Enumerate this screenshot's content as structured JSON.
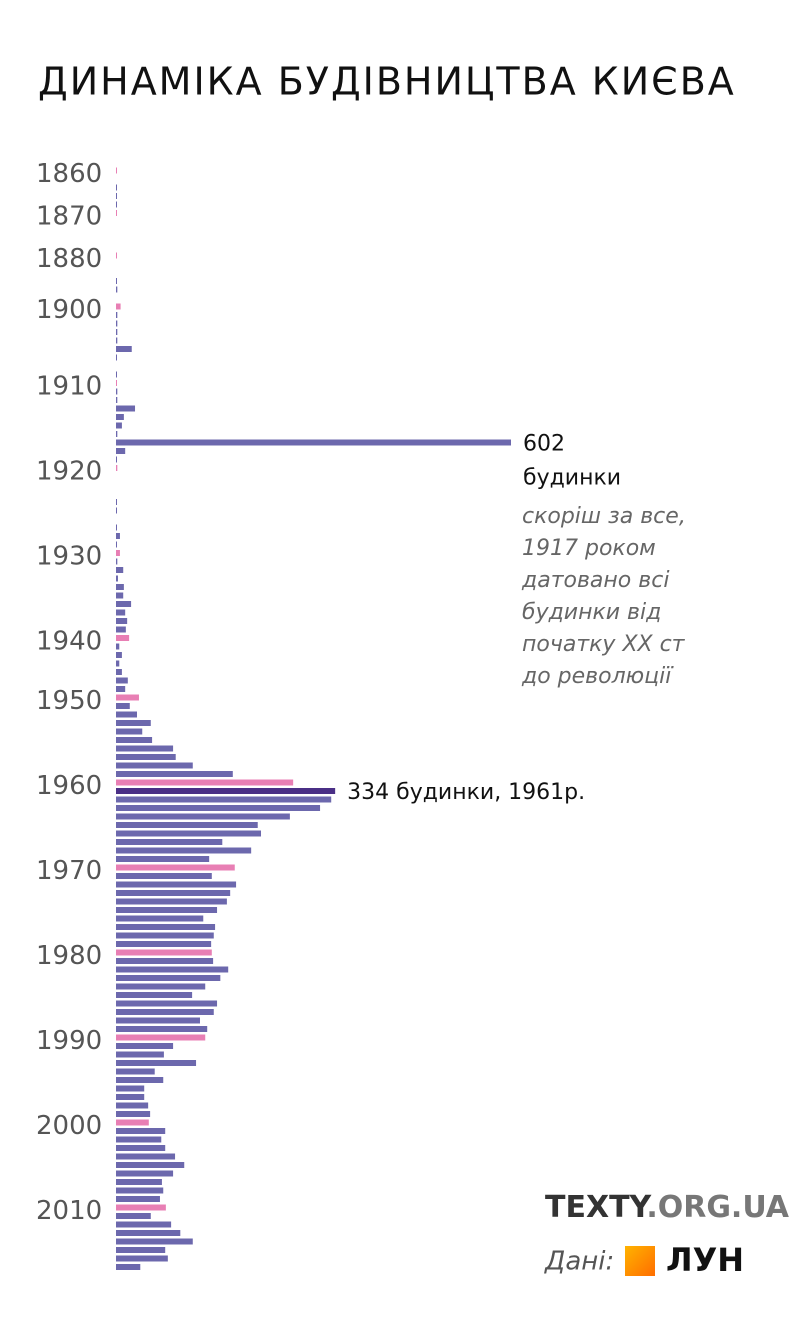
{
  "chart_data": {
    "type": "barh",
    "title": "ДИНАМІКА БУДІВНИЦТВА КИЄВА",
    "categories": [
      "1860",
      null,
      null,
      null,
      null,
      "1870",
      null,
      null,
      null,
      null,
      "1880",
      null,
      null,
      null,
      null,
      null,
      "1900",
      null,
      null,
      null,
      null,
      null,
      null,
      null,
      null,
      "1910",
      null,
      null,
      null,
      null,
      null,
      null,
      null,
      null,
      null,
      "1920",
      null,
      null,
      null,
      null,
      null,
      null,
      null,
      null,
      null,
      "1930",
      null,
      null,
      null,
      null,
      null,
      null,
      null,
      null,
      null,
      "1940",
      null,
      null,
      null,
      null,
      null,
      null,
      "1950",
      null,
      null,
      null,
      null,
      null,
      null,
      null,
      null,
      null,
      "1960",
      null,
      null,
      null,
      null,
      null,
      null,
      null,
      null,
      null,
      "1970",
      null,
      null,
      null,
      null,
      null,
      null,
      null,
      null,
      null,
      "1980",
      null,
      null,
      null,
      null,
      null,
      null,
      null,
      null,
      null,
      "1990",
      null,
      null,
      null,
      null,
      null,
      null,
      null,
      null,
      null,
      "2000",
      null,
      null,
      null,
      null,
      null,
      null,
      null,
      null,
      null,
      "2010",
      null,
      null,
      null,
      null,
      null,
      null,
      null
    ],
    "values": [
      1,
      null,
      1,
      1,
      1,
      1,
      null,
      null,
      null,
      null,
      1,
      null,
      null,
      1,
      2,
      null,
      7,
      2,
      2,
      2,
      2,
      24,
      1,
      null,
      1,
      1,
      2,
      2,
      29,
      12,
      9,
      2,
      602,
      14,
      1,
      2,
      null,
      null,
      null,
      1,
      1,
      null,
      1,
      6,
      1,
      6,
      2,
      11,
      3,
      12,
      11,
      23,
      14,
      17,
      15,
      20,
      5,
      9,
      5,
      9,
      18,
      14,
      35,
      21,
      32,
      53,
      40,
      55,
      87,
      91,
      117,
      178,
      270,
      334,
      328,
      311,
      265,
      216,
      221,
      162,
      206,
      142,
      181,
      146,
      183,
      174,
      169,
      154,
      133,
      151,
      149,
      145,
      146,
      148,
      171,
      159,
      136,
      116,
      154,
      149,
      128,
      139,
      136,
      87,
      73,
      122,
      59,
      72,
      43,
      43,
      49,
      52,
      50,
      75,
      69,
      75,
      90,
      104,
      87,
      70,
      72,
      67,
      76,
      53,
      84,
      98,
      117,
      75,
      79,
      37
    ],
    "value_labels": {
      "32": "602 будинки",
      "73": "334 будинки, 1961р."
    },
    "color": "#6c68ad",
    "highlight_color": "#e87fb4",
    "annotated_color": "#4a2f86",
    "xlim": [
      0,
      602
    ],
    "note": [
      "скоріш за все,",
      "1917 роком",
      "датовано всі",
      "будинки від",
      "початку XX ст",
      "до революції"
    ],
    "source_brand": [
      "TEXTY",
      ".ORG.UA"
    ],
    "data_label": "Дані:",
    "data_source": "ЛУН"
  }
}
